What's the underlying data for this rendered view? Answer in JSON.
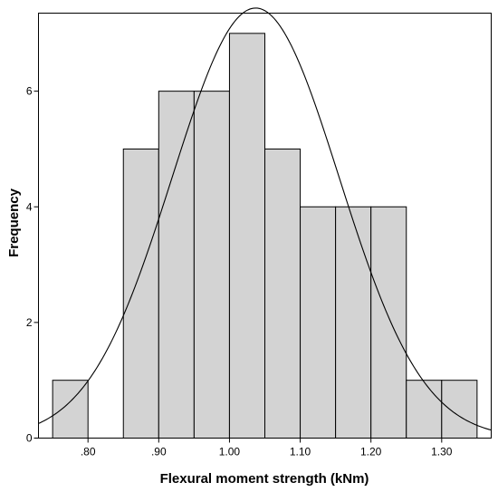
{
  "chart_data": {
    "type": "bar",
    "subtype": "histogram",
    "xlabel": "Flexural moment strength (kNm)",
    "ylabel": "Frequency",
    "bin_width": 0.05,
    "bins": [
      {
        "start": 0.75,
        "end": 0.8,
        "count": 1
      },
      {
        "start": 0.8,
        "end": 0.85,
        "count": 0
      },
      {
        "start": 0.85,
        "end": 0.9,
        "count": 5
      },
      {
        "start": 0.9,
        "end": 0.95,
        "count": 6
      },
      {
        "start": 0.95,
        "end": 1.0,
        "count": 6
      },
      {
        "start": 1.0,
        "end": 1.05,
        "count": 7
      },
      {
        "start": 1.05,
        "end": 1.1,
        "count": 5
      },
      {
        "start": 1.1,
        "end": 1.15,
        "count": 4
      },
      {
        "start": 1.15,
        "end": 1.2,
        "count": 4
      },
      {
        "start": 1.2,
        "end": 1.25,
        "count": 4
      },
      {
        "start": 1.25,
        "end": 1.3,
        "count": 1
      },
      {
        "start": 1.3,
        "end": 1.35,
        "count": 1
      }
    ],
    "normal_curve": {
      "mean": 1.037,
      "std_dev": 0.118,
      "n": 44
    },
    "xlim": [
      0.73,
      1.37
    ],
    "ylim": [
      0,
      7.35
    ],
    "x_ticks": [
      {
        "value": 0.8,
        "label": ".80"
      },
      {
        "value": 0.9,
        "label": ".90"
      },
      {
        "value": 1.0,
        "label": "1.00"
      },
      {
        "value": 1.1,
        "label": "1.10"
      },
      {
        "value": 1.2,
        "label": "1.20"
      },
      {
        "value": 1.3,
        "label": "1.30"
      }
    ],
    "y_ticks": [
      {
        "value": 0,
        "label": "0"
      },
      {
        "value": 2,
        "label": "2"
      },
      {
        "value": 4,
        "label": "4"
      },
      {
        "value": 6,
        "label": "6"
      }
    ],
    "grid": false,
    "legend": "none",
    "colors": {
      "bar_fill": "#d3d3d3",
      "bar_stroke": "#000000",
      "curve": "#000000"
    }
  }
}
